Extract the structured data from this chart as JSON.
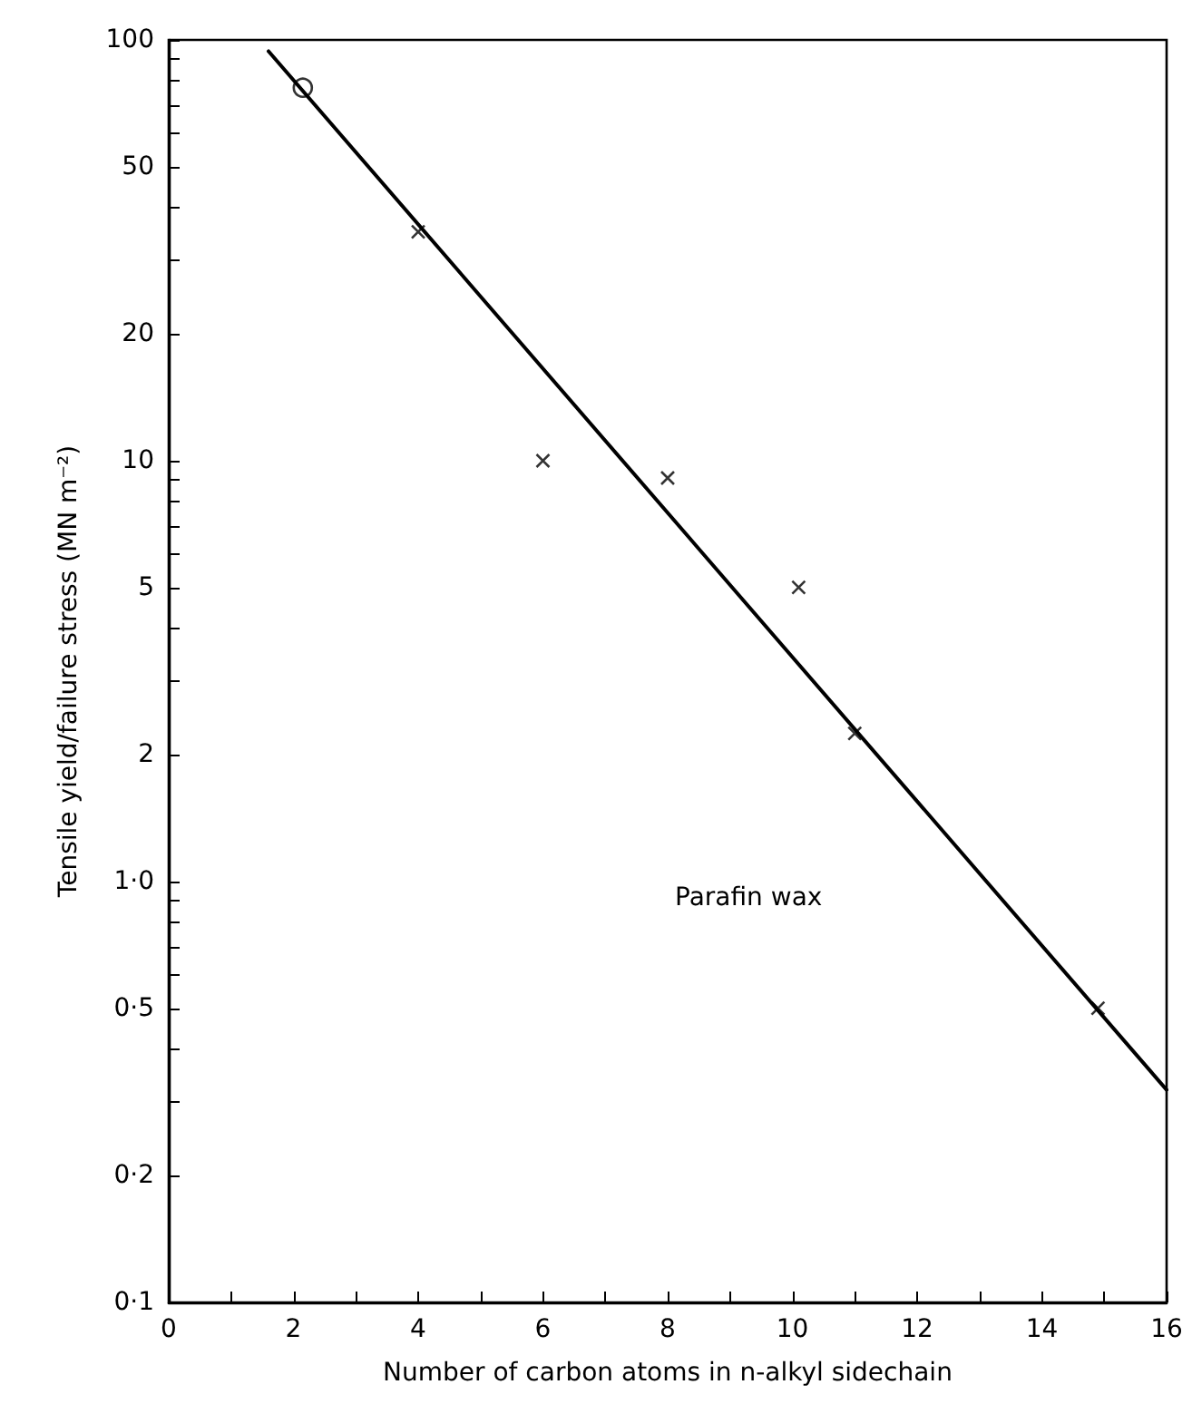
{
  "chart_data": {
    "type": "scatter",
    "xlabel": "Number of carbon atoms in n-alkyl sidechain",
    "ylabel": "Tensile yield/failure stress (MN m⁻²)",
    "log": "y",
    "grid": false,
    "xlim": [
      0,
      16
    ],
    "ylim": [
      0.1,
      100
    ],
    "xticks": [
      0,
      {
        "value": 1,
        "label": null
      },
      2,
      {
        "value": 3,
        "label": null
      },
      4,
      {
        "value": 5,
        "label": null
      },
      6,
      {
        "value": 7,
        "label": null
      },
      8,
      {
        "value": 9,
        "label": null
      },
      10,
      {
        "value": 11,
        "label": null
      },
      12,
      {
        "value": 13,
        "label": null
      },
      14,
      {
        "value": 15,
        "label": null
      },
      16
    ],
    "yticks": [
      {
        "value": 0.1,
        "label": "0·1"
      },
      {
        "value": 0.2,
        "label": "0·2"
      },
      {
        "value": 0.3,
        "label": null
      },
      {
        "value": 0.4,
        "label": null
      },
      {
        "value": 0.5,
        "label": "0·5"
      },
      {
        "value": 0.6,
        "label": null
      },
      {
        "value": 0.7,
        "label": null
      },
      {
        "value": 0.8,
        "label": null
      },
      {
        "value": 0.9,
        "label": null
      },
      {
        "value": 1,
        "label": "1·0"
      },
      2,
      {
        "value": 3,
        "label": null
      },
      {
        "value": 4,
        "label": null
      },
      5,
      {
        "value": 6,
        "label": null
      },
      {
        "value": 7,
        "label": null
      },
      {
        "value": 8,
        "label": null
      },
      {
        "value": 9,
        "label": null
      },
      10,
      20,
      {
        "value": 30,
        "label": null
      },
      {
        "value": 40,
        "label": null
      },
      50,
      {
        "value": 60,
        "label": null
      },
      {
        "value": 70,
        "label": null
      },
      {
        "value": 80,
        "label": null
      },
      {
        "value": 90,
        "label": null
      },
      100
    ],
    "annotations": [
      "Parafin wax"
    ],
    "series": [
      {
        "type": "line",
        "color": "#000000",
        "marker": "none",
        "line_style": "solid",
        "x": [
          1.6,
          16
        ],
        "values": [
          94,
          0.32
        ]
      },
      {
        "type": "scatter",
        "color": "#000000",
        "marker": "circle",
        "x": [
          2.15
        ],
        "values": [
          77
        ]
      },
      {
        "type": "scatter",
        "color": "#000000",
        "marker": "cross",
        "x": [
          4,
          6,
          8,
          10.1,
          11,
          14.9
        ],
        "values": [
          35,
          10,
          9.1,
          5,
          2.25,
          0.5
        ]
      }
    ]
  }
}
